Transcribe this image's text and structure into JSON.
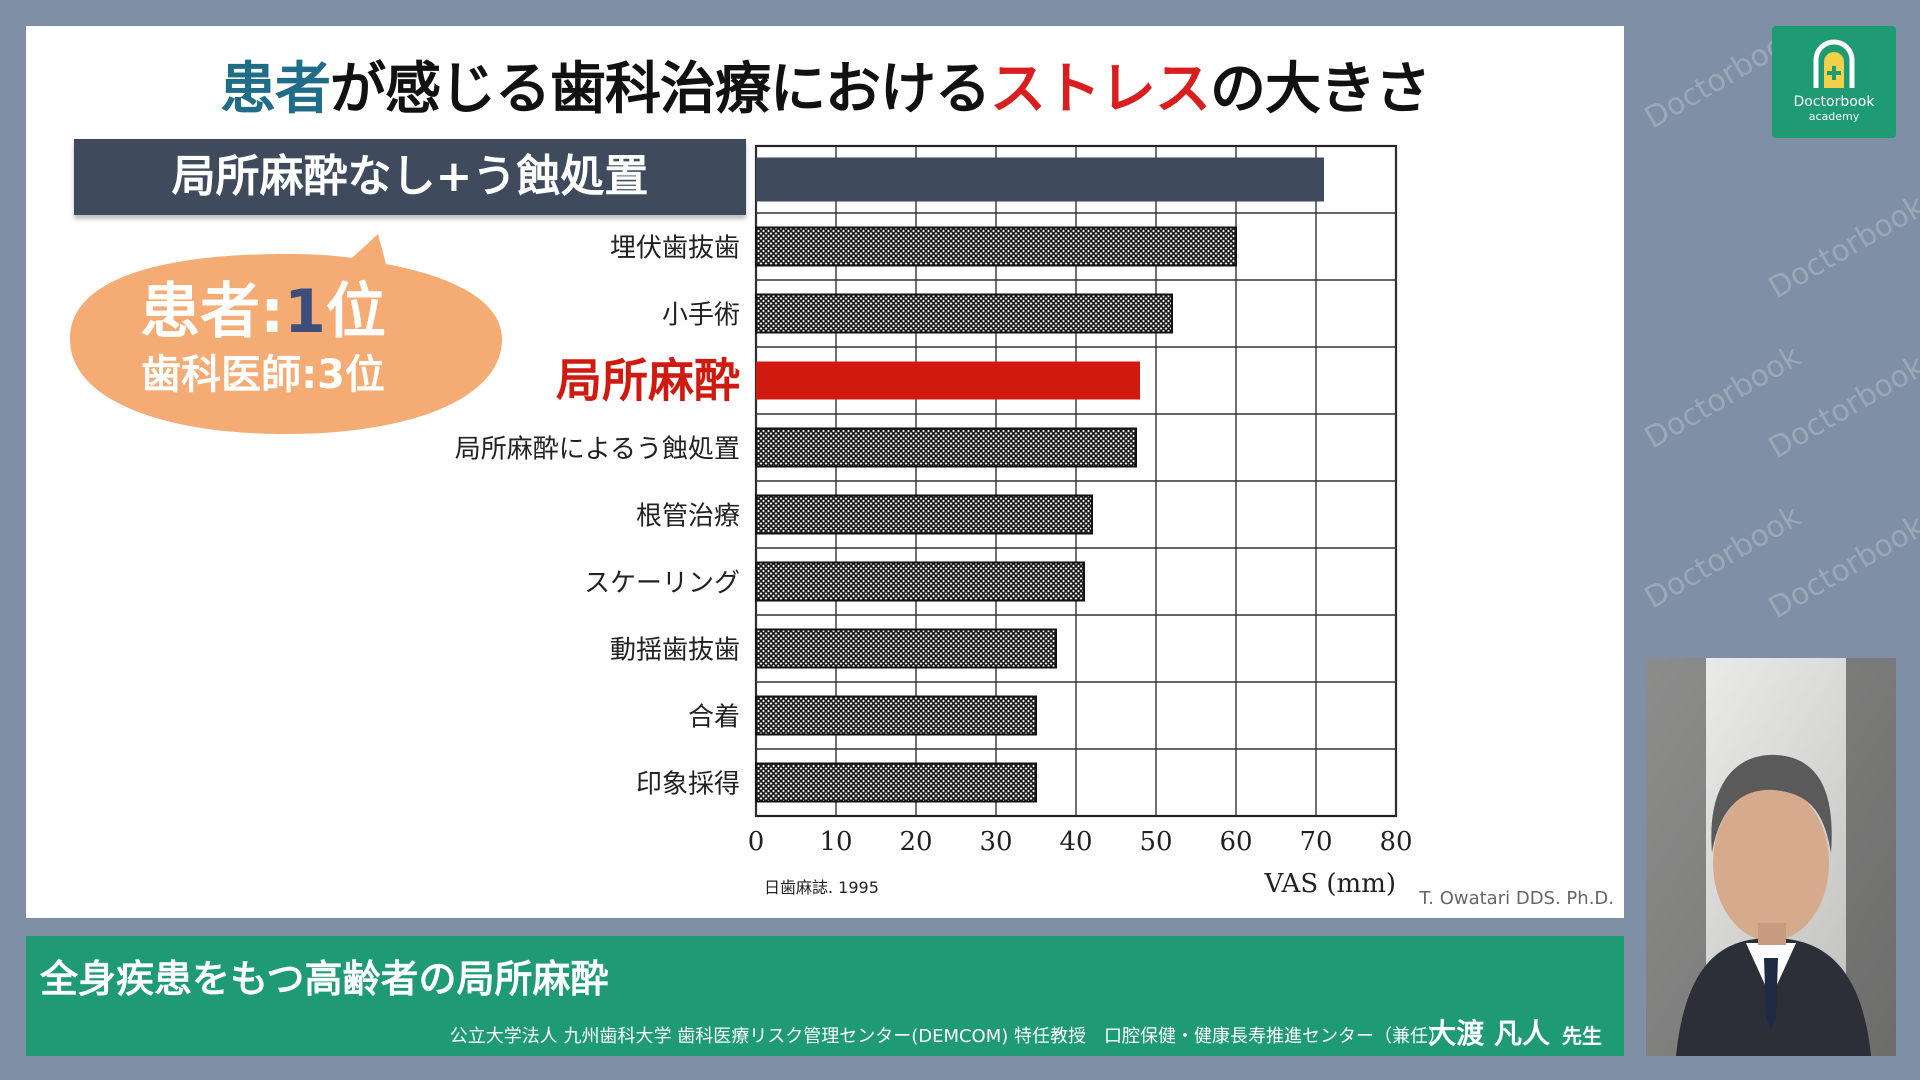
{
  "slide": {
    "title_patient": "患者",
    "title_middle": "が感じる歯科治療における",
    "title_stress": "ストレス",
    "title_end": "の大きさ",
    "highlight_label": "局所麻酔なし+う蝕処置",
    "callout_patient_prefix": "患者:",
    "callout_patient_rank": "1",
    "callout_patient_suffix": "位",
    "callout_dentist": "歯科医師:3位",
    "source": "日歯麻誌. 1995",
    "credit": "T. Owatari DDS. Ph.D."
  },
  "chart_data": {
    "type": "bar",
    "orientation": "horizontal",
    "categories": [
      "",
      "埋伏歯抜歯",
      "小手術",
      "局所麻酔",
      "局所麻酔によるう蝕処置",
      "根管治療",
      "スケーリング",
      "動揺歯抜歯",
      "合着",
      "印象採得"
    ],
    "values": [
      71,
      60,
      52,
      48,
      47.5,
      42,
      41,
      37.5,
      35,
      35
    ],
    "highlight_index": 3,
    "xlabel": "VAS (mm)",
    "xlim": [
      0,
      80
    ],
    "xticks": [
      "0",
      "10",
      "20",
      "30",
      "40",
      "50",
      "60",
      "70",
      "80"
    ],
    "grid": true,
    "colors": {
      "top": "#3f4a5c",
      "highlight": "#d11a0f",
      "pattern": "crosshatch"
    }
  },
  "banner": {
    "title": "全身疾患をもつ高齢者の局所麻酔",
    "affiliation": "公立大学法人 九州歯科大学 歯科医療リスク管理センター(DEMCOM) 特任教授　口腔保健・健康長寿推進センター（兼任）",
    "presenter": "大渡 凡人",
    "honorific": "先生"
  },
  "logo": {
    "text": "Doctorbook",
    "sub": "academy",
    "icon": "arch-cross-icon"
  },
  "watermark": {
    "text": "Doctorbook"
  }
}
